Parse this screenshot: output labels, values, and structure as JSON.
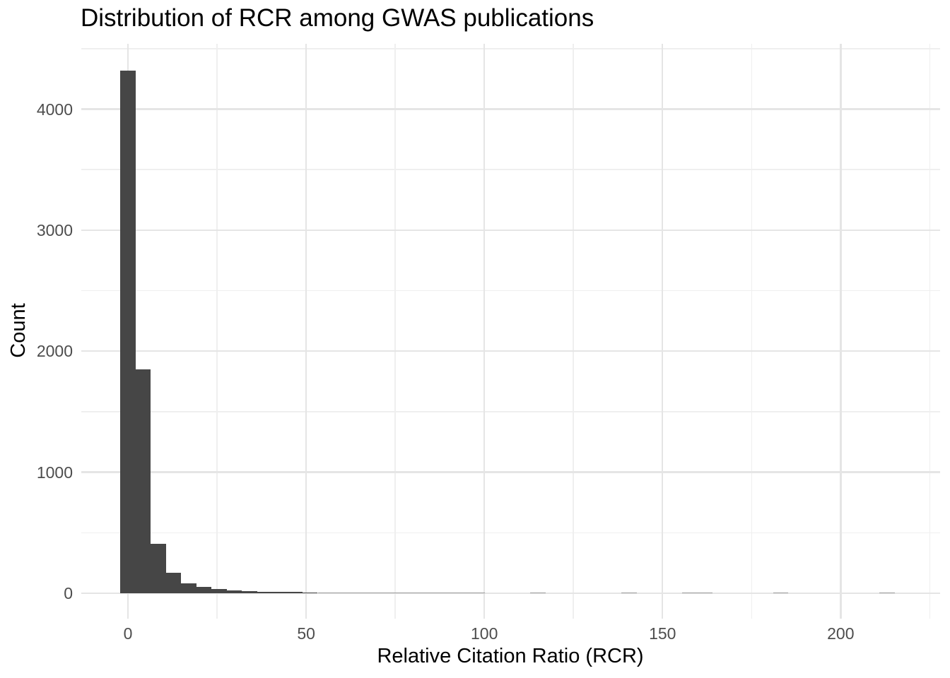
{
  "title": "Distribution of RCR among GWAS publications",
  "colors": {
    "background": "#FFFFFF",
    "bar_fill": "#464646",
    "bar_faint": "#9B9B9B",
    "grid_major": "#E5E5E5",
    "grid_minor": "#EFEFEF",
    "tick_text": "#4D4D4D",
    "title_text": "#000000"
  },
  "chart_data": {
    "type": "bar",
    "subtype": "histogram",
    "title": "Distribution of RCR among GWAS publications",
    "xlabel": "Relative Citation Ratio (RCR)",
    "ylabel": "Count",
    "legend_position": "none",
    "grid": true,
    "bin_width": 4.26,
    "xlim": [
      -13.1,
      227.9
    ],
    "ylim": [
      -210,
      4540
    ],
    "x_ticks": [
      0,
      50,
      100,
      150,
      200
    ],
    "x_minor_ticks": [
      25,
      75,
      125,
      175,
      225
    ],
    "y_ticks": [
      0,
      1000,
      2000,
      3000,
      4000
    ],
    "y_minor_ticks": [
      500,
      1500,
      2500,
      3500,
      4500
    ],
    "bin_centers": [
      0,
      4.26,
      8.52,
      12.78,
      17.04,
      21.3,
      25.56,
      29.82,
      34.08,
      38.34,
      42.6,
      46.86,
      51.12,
      55.38,
      59.64,
      63.9,
      68.16,
      72.42,
      76.68,
      80.94,
      85.2,
      89.46,
      93.72,
      97.98,
      102.24,
      106.5,
      110.76,
      115.02,
      119.28,
      123.54,
      127.8,
      132.06,
      136.32,
      140.58,
      144.84,
      149.1,
      153.36,
      157.62,
      161.88,
      166.14,
      170.4,
      174.66,
      178.92,
      183.18,
      187.44,
      191.7,
      195.96,
      200.22,
      204.48,
      208.74,
      213.0
    ],
    "counts": [
      4320,
      1850,
      410,
      170,
      80,
      50,
      35,
      23,
      18,
      13,
      11,
      9,
      8,
      7,
      6,
      5,
      5,
      4,
      3,
      3,
      2,
      2,
      2,
      2,
      0,
      0,
      0,
      1,
      0,
      0,
      0,
      0,
      0,
      1,
      0,
      0,
      0,
      1,
      1,
      0,
      0,
      0,
      0,
      1,
      0,
      0,
      0,
      0,
      0,
      0,
      1
    ]
  }
}
